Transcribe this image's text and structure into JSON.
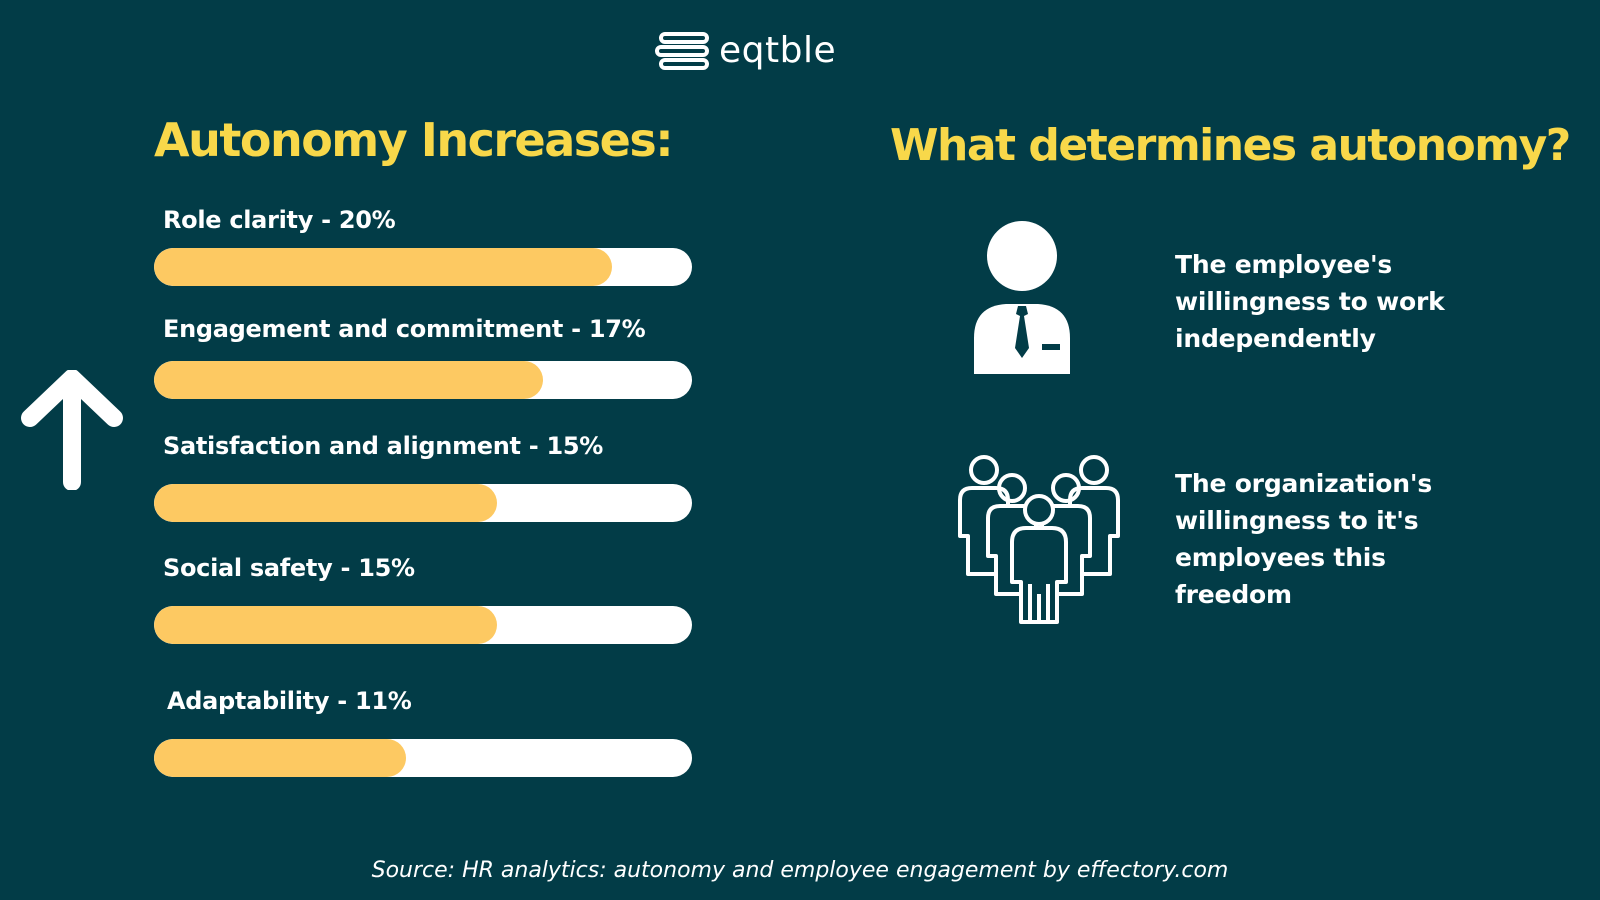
{
  "brand": {
    "name": "eqtble"
  },
  "left": {
    "heading": "Autonomy Increases:"
  },
  "right": {
    "heading": "What determines autonomy?",
    "items": [
      {
        "icon": "person-icon",
        "text": "The employee's willingness to work independently"
      },
      {
        "icon": "group-icon",
        "text": "The organization's willingness to it's employees this freedom"
      }
    ]
  },
  "source": "Source: HR analytics: autonomy and employee engagement by effectory.com",
  "colors": {
    "background": "#023c47",
    "accent_yellow": "#f8d84a",
    "bar_fill": "#fdc962",
    "bar_track": "#ffffff"
  },
  "chart_data": {
    "type": "bar",
    "orientation": "horizontal",
    "title": "Autonomy Increases:",
    "categories": [
      "Role clarity",
      "Engagement and commitment",
      "Satisfaction and alignment",
      "Social safety",
      "Adaptability"
    ],
    "labels": [
      "Role clarity - 20%",
      "Engagement and commitment - 17%",
      "Satisfaction and alignment - 15%",
      "Social safety - 15%",
      "Adaptability - 11%"
    ],
    "values": [
      20,
      17,
      15,
      15,
      11
    ],
    "unit": "%",
    "xlim": [
      0,
      23.5
    ],
    "grid": false,
    "legend": "none"
  }
}
